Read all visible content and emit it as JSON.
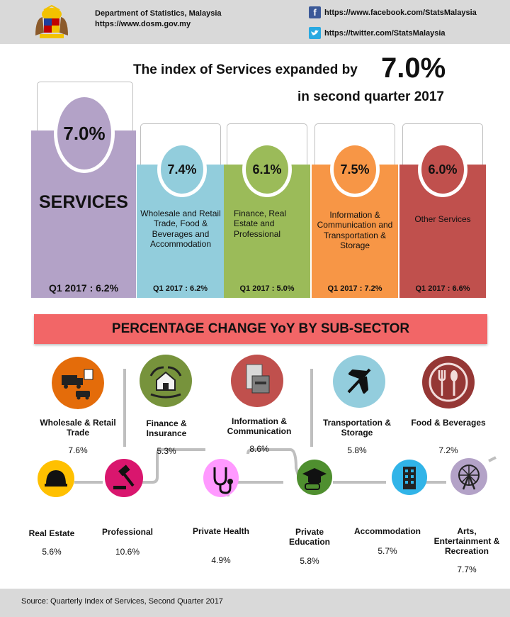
{
  "header": {
    "department": "Department of Statistics, Malaysia",
    "website": "https://www.dosm.gov.my",
    "facebook": "https://www.facebook.com/StatsMalaysia",
    "twitter": "https://twitter.com/StatsMalaysia"
  },
  "headline": {
    "line1": "The index of Services expanded by",
    "value": "7.0%",
    "line2": "in second quarter 2017"
  },
  "sectors": [
    {
      "pct": "7.0%",
      "name": "SERVICES",
      "q1": "Q1 2017 : 6.2%",
      "color": "#b3a2c7"
    },
    {
      "pct": "7.4%",
      "name": "Wholesale and Retail Trade, Food & Beverages and Accommodation",
      "q1": "Q1 2017 : 6.2%",
      "color": "#92cddc"
    },
    {
      "pct": "6.1%",
      "name": "Finance, Real Estate and Professional",
      "q1": "Q1 2017 : 5.0%",
      "color": "#9bbb59"
    },
    {
      "pct": "7.5%",
      "name": "Information & Communication and Transportation & Storage",
      "q1": "Q1 2017 : 7.2%",
      "color": "#f79646"
    },
    {
      "pct": "6.0%",
      "name": "Other Services",
      "q1": "Q1 2017 : 6.6%",
      "color": "#c0504d"
    }
  ],
  "band_title": "PERCENTAGE CHANGE YoY BY SUB-SECTOR",
  "subsectors_top": [
    {
      "label": "Wholesale & Retail Trade",
      "value": "7.6%",
      "icon": "truck-icon",
      "color": "#e46c0a"
    },
    {
      "label": "Finance & Insurance",
      "value": "5.3%",
      "icon": "house-hands-icon",
      "color": "#77933c"
    },
    {
      "label": "Information & Communication",
      "value": "8.6%",
      "icon": "printer-icon",
      "color": "#c0504d"
    },
    {
      "label": "Transportation & Storage",
      "value": "5.8%",
      "icon": "airplane-icon",
      "color": "#93cddd"
    },
    {
      "label": "Food & Beverages",
      "value": "7.2%",
      "icon": "cutlery-icon",
      "color": "#953735"
    }
  ],
  "subsectors_bottom": [
    {
      "label": "Real Estate",
      "value": "5.6%",
      "icon": "helmet-icon",
      "color": "#ffc000"
    },
    {
      "label": "Professional",
      "value": "10.6%",
      "icon": "gavel-icon",
      "color": "#d9166e"
    },
    {
      "label": "Private Health",
      "value": "4.9%",
      "icon": "stethoscope-icon",
      "color": "#ff99ff"
    },
    {
      "label": "Private Education",
      "value": "5.8%",
      "icon": "graduation-icon",
      "color": "#4f8f2f"
    },
    {
      "label": "Accommodation",
      "value": "5.7%",
      "icon": "building-icon",
      "color": "#31b4e8"
    },
    {
      "label": "Arts, Entertainment & Recreation",
      "value": "7.7%",
      "icon": "ferris-wheel-icon",
      "color": "#b3a2c7"
    }
  ],
  "footer": {
    "source": "Source: Quarterly Index of Services, Second Quarter 2017"
  }
}
